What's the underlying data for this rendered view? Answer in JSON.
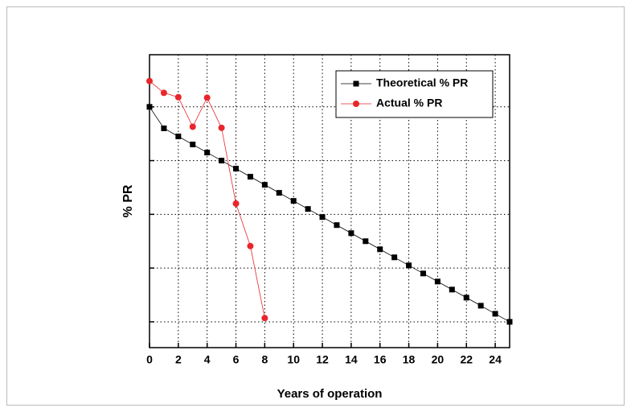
{
  "chart_data": {
    "type": "line",
    "x_label": "Years of operation",
    "y_label": "% PR",
    "x": [
      0,
      1,
      2,
      3,
      4,
      5,
      6,
      7,
      8,
      9,
      10,
      11,
      12,
      13,
      14,
      15,
      16,
      17,
      18,
      19,
      20,
      21,
      22,
      23,
      24,
      25
    ],
    "series": [
      {
        "name": "Theoretical % PR",
        "color": "#000000",
        "marker": "square",
        "values": [
          5.0,
          4.6,
          4.45,
          4.3,
          4.15,
          4.0,
          3.85,
          3.7,
          3.55,
          3.4,
          3.25,
          3.1,
          2.95,
          2.8,
          2.65,
          2.5,
          2.35,
          2.2,
          2.05,
          1.9,
          1.75,
          1.6,
          1.45,
          1.3,
          1.15,
          1.0
        ]
      },
      {
        "name": "Actual % PR",
        "color": "#e8262b",
        "marker": "circle",
        "values": [
          5.48,
          5.26,
          5.18,
          4.63,
          5.17,
          4.61,
          3.2,
          2.41,
          1.07,
          null,
          null,
          null,
          null,
          null,
          null,
          null,
          null,
          null,
          null,
          null,
          null,
          null,
          null,
          null,
          null,
          null
        ]
      }
    ],
    "xlim": [
      0,
      25
    ],
    "xticks": [
      0,
      2,
      4,
      6,
      8,
      10,
      12,
      14,
      16,
      18,
      20,
      22,
      24
    ],
    "ylim": [
      0.52,
      5.97
    ],
    "yticks": [
      1,
      2,
      3,
      4,
      5
    ],
    "grid": true,
    "legend": "upper right"
  }
}
